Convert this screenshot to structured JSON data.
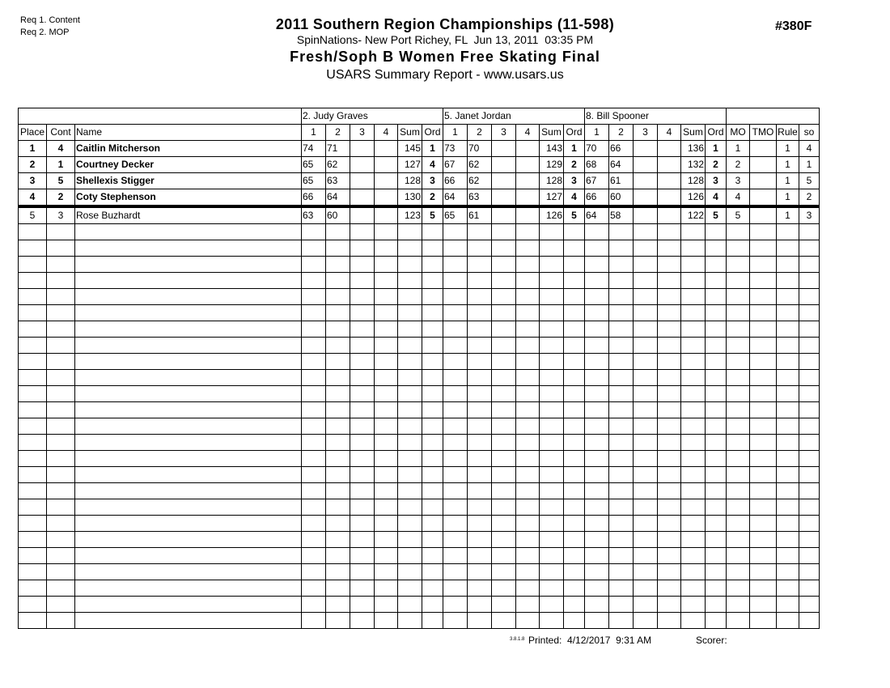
{
  "header": {
    "req_lines": [
      "Req 1. Content",
      "Req 2. MOP"
    ],
    "title": "2011 Southern Region Championships (11-598)",
    "subtitle": "SpinNations- New Port Richey, FL  Jun 13, 2011  03:35 PM",
    "event_title": "Fresh/Soph B Women Free Skating Final",
    "report_line": "USARS Summary Report - www.usars.us",
    "event_number": "#380F"
  },
  "table": {
    "judges": [
      "2.  Judy Graves",
      "5.  Janet Jordan",
      "8.  Bill Spooner"
    ],
    "columns": {
      "place": "Place",
      "cont": "Cont",
      "name": "Name",
      "judge_sub": [
        "1",
        "2",
        "3",
        "4",
        "Sum",
        "Ord"
      ],
      "right": [
        "MO",
        "TMO",
        "Rule",
        "so"
      ]
    },
    "rows": [
      {
        "place": "1",
        "cont": "4",
        "name": "Caitlin Mitcherson",
        "bold": true,
        "thick_bottom": false,
        "judges": [
          [
            "74",
            "71",
            "",
            "",
            "145",
            "1"
          ],
          [
            "73",
            "70",
            "",
            "",
            "143",
            "1"
          ],
          [
            "70",
            "66",
            "",
            "",
            "136",
            "1"
          ]
        ],
        "mo": "1",
        "tmo": "",
        "rule": "1",
        "so": "4"
      },
      {
        "place": "2",
        "cont": "1",
        "name": "Courtney Decker",
        "bold": true,
        "thick_bottom": false,
        "judges": [
          [
            "65",
            "62",
            "",
            "",
            "127",
            "4"
          ],
          [
            "67",
            "62",
            "",
            "",
            "129",
            "2"
          ],
          [
            "68",
            "64",
            "",
            "",
            "132",
            "2"
          ]
        ],
        "mo": "2",
        "tmo": "",
        "rule": "1",
        "so": "1"
      },
      {
        "place": "3",
        "cont": "5",
        "name": "Shellexis Stigger",
        "bold": true,
        "thick_bottom": false,
        "judges": [
          [
            "65",
            "63",
            "",
            "",
            "128",
            "3"
          ],
          [
            "66",
            "62",
            "",
            "",
            "128",
            "3"
          ],
          [
            "67",
            "61",
            "",
            "",
            "128",
            "3"
          ]
        ],
        "mo": "3",
        "tmo": "",
        "rule": "1",
        "so": "5"
      },
      {
        "place": "4",
        "cont": "2",
        "name": "Coty Stephenson",
        "bold": true,
        "thick_bottom": true,
        "judges": [
          [
            "66",
            "64",
            "",
            "",
            "130",
            "2"
          ],
          [
            "64",
            "63",
            "",
            "",
            "127",
            "4"
          ],
          [
            "66",
            "60",
            "",
            "",
            "126",
            "4"
          ]
        ],
        "mo": "4",
        "tmo": "",
        "rule": "1",
        "so": "2"
      },
      {
        "place": "5",
        "cont": "3",
        "name": "Rose Buzhardt",
        "bold": false,
        "thick_bottom": false,
        "judges": [
          [
            "63",
            "60",
            "",
            "",
            "123",
            "5"
          ],
          [
            "65",
            "61",
            "",
            "",
            "126",
            "5"
          ],
          [
            "64",
            "58",
            "",
            "",
            "122",
            "5"
          ]
        ],
        "mo": "5",
        "tmo": "",
        "rule": "1",
        "so": "3"
      }
    ],
    "empty_row_count": 25
  },
  "footer": {
    "version": "3.8.1.8",
    "printed": "Printed:  4/12/2017  9:31 AM",
    "scorer": "Scorer:"
  }
}
